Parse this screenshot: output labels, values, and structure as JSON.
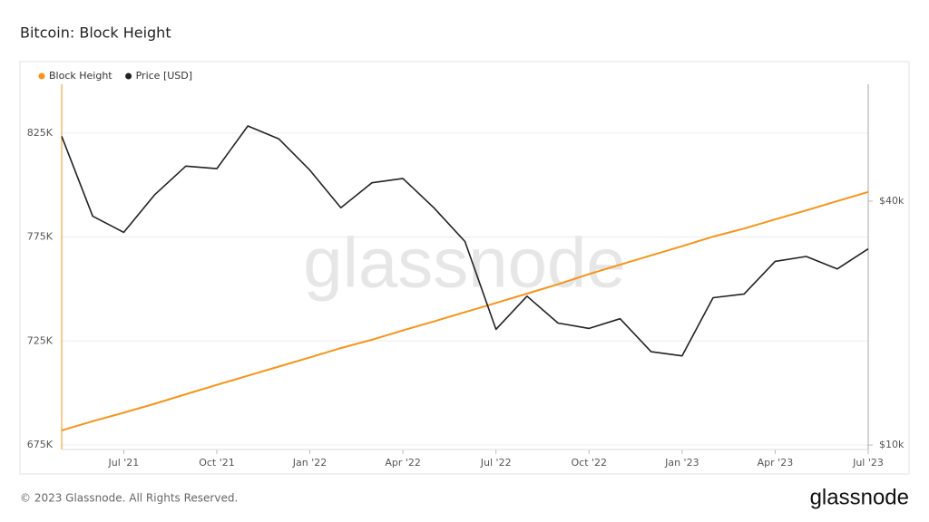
{
  "chart_data": {
    "type": "line",
    "title": "Bitcoin: Block Height",
    "watermark": "glassnode",
    "footer": "© 2023 Glassnode. All Rights Reserved.",
    "logo": "glassnode",
    "x": [
      "2021-05",
      "2021-06",
      "2021-07",
      "2021-08",
      "2021-09",
      "2021-10",
      "2021-11",
      "2021-12",
      "2022-01",
      "2022-02",
      "2022-03",
      "2022-04",
      "2022-05",
      "2022-06",
      "2022-07",
      "2022-08",
      "2022-09",
      "2022-10",
      "2022-11",
      "2022-12",
      "2023-01",
      "2023-02",
      "2023-03",
      "2023-04",
      "2023-05",
      "2023-06",
      "2023-07"
    ],
    "xlim": [
      "2021-05",
      "2023-07"
    ],
    "xticks": [
      {
        "value": "2021-07",
        "label": "Jul '21"
      },
      {
        "value": "2021-10",
        "label": "Oct '21"
      },
      {
        "value": "2022-01",
        "label": "Jan '22"
      },
      {
        "value": "2022-04",
        "label": "Apr '22"
      },
      {
        "value": "2022-07",
        "label": "Jul '22"
      },
      {
        "value": "2022-10",
        "label": "Oct '22"
      },
      {
        "value": "2023-01",
        "label": "Jan '23"
      },
      {
        "value": "2023-04",
        "label": "Apr '23"
      },
      {
        "value": "2023-07",
        "label": "Jul '23"
      }
    ],
    "ylim": [
      672800,
      848500
    ],
    "yticks": [
      {
        "value": 675000,
        "label": "675K"
      },
      {
        "value": 725000,
        "label": "725K"
      },
      {
        "value": 775000,
        "label": "775K"
      },
      {
        "value": 825000,
        "label": "825K"
      }
    ],
    "y2lim": [
      9750,
      77700
    ],
    "y2log": true,
    "y2ticks": [
      {
        "value": 10000,
        "label": "$10k"
      },
      {
        "value": 40000,
        "label": "$40k"
      }
    ],
    "grid": true,
    "legend": "top-left",
    "series": [
      {
        "name": "Block Height",
        "color": "#f7931a",
        "values": [
          682000,
          686400,
          690500,
          694800,
          699400,
          703900,
          708300,
          712700,
          717100,
          721600,
          725600,
          730100,
          734400,
          738900,
          743300,
          747800,
          752300,
          757200,
          761700,
          766200,
          770600,
          775200,
          779100,
          783500,
          787800,
          792300,
          796700
        ]
      },
      {
        "name": "Price [USD]",
        "color": "#222222",
        "axis": "y2",
        "values": [
          57800,
          36700,
          33500,
          41500,
          48800,
          48100,
          61300,
          57000,
          47700,
          38500,
          44400,
          45500,
          38500,
          31800,
          19300,
          23300,
          20000,
          19400,
          20500,
          17000,
          16600,
          23100,
          23600,
          28400,
          29200,
          27200,
          30500
        ]
      }
    ]
  }
}
